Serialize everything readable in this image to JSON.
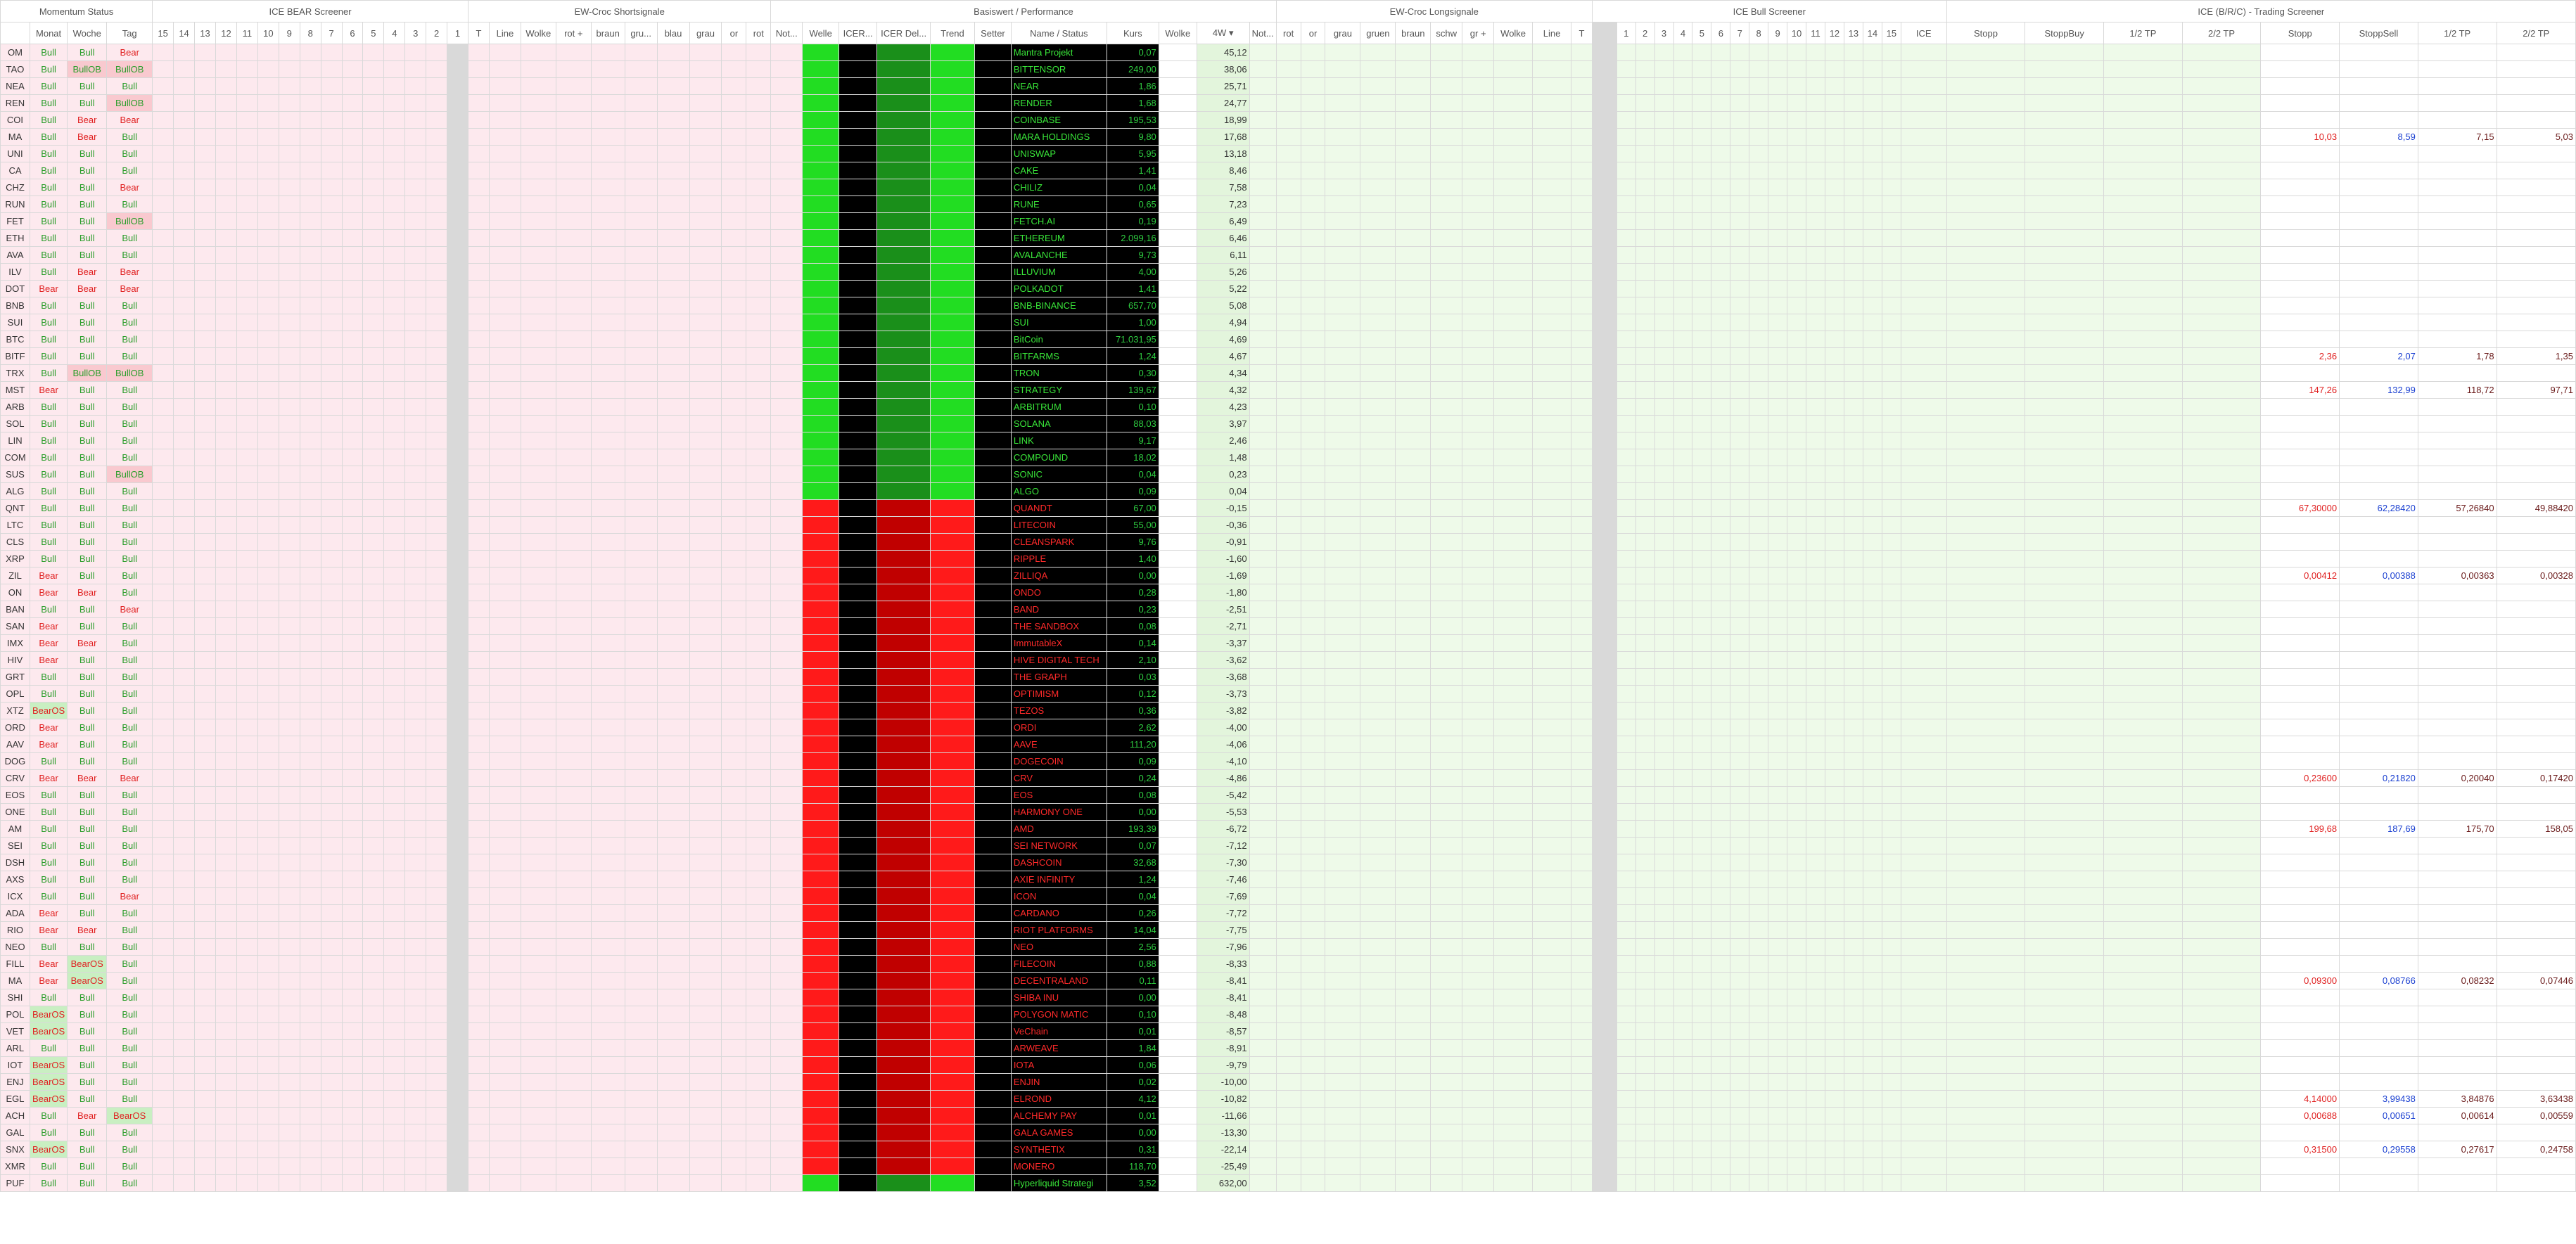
{
  "groups": [
    "Momentum Status",
    "ICE BEAR Screener",
    "EW-Croc Shortsignale",
    "Basiswert / Performance",
    "EW-Croc Longsignale",
    "ICE Bull Screener",
    "ICE (B/R/C) - Trading Screener"
  ],
  "columns": [
    null,
    "Monat",
    "Woche",
    "Tag",
    "15",
    "14",
    "13",
    "12",
    "11",
    "10",
    "9",
    "8",
    "7",
    "6",
    "5",
    "4",
    "3",
    "2",
    "1",
    "T",
    "Line",
    "Wolke",
    "rot +",
    "braun",
    "gru...",
    "blau",
    "grau",
    "or",
    "rot",
    "Not...",
    "Welle",
    "ICER...",
    "ICER Del...",
    "Trend",
    "Setter",
    "Name / Status",
    "Kurs",
    "Wolke",
    "4W ▾",
    "Not...",
    "rot",
    "or",
    "grau",
    "gruen",
    "braun",
    "schw",
    "gr +",
    "Wolke",
    "Line",
    "T",
    null,
    "1",
    "2",
    "3",
    "4",
    "5",
    "6",
    "7",
    "8",
    "9",
    "10",
    "11",
    "12",
    "13",
    "14",
    "15",
    "ICE",
    "Stopp",
    "StoppBuy",
    "1/2 TP",
    "2/2 TP",
    "Stopp",
    "StoppSell",
    "1/2 TP",
    "2/2 TP"
  ],
  "rows": [
    {
      "t": "OM",
      "m": "Bull",
      "w": "Bull",
      "d": "Bear",
      "n": "Mantra Projekt",
      "k": "0,07",
      "p": "45,12"
    },
    {
      "t": "TAO",
      "m": "Bull",
      "w": "BullOB",
      "d": "BullOB",
      "n": "BITTENSOR",
      "k": "249,00",
      "p": "38,06"
    },
    {
      "t": "NEA",
      "m": "Bull",
      "w": "Bull",
      "d": "Bull",
      "n": "NEAR",
      "k": "1,86",
      "p": "25,71"
    },
    {
      "t": "REN",
      "m": "Bull",
      "w": "Bull",
      "d": "BullOB",
      "n": "RENDER",
      "k": "1,68",
      "p": "24,77"
    },
    {
      "t": "COI",
      "m": "Bull",
      "w": "Bear",
      "d": "Bear",
      "n": "COINBASE",
      "k": "195,53",
      "p": "18,99"
    },
    {
      "t": "MA",
      "m": "Bull",
      "w": "Bear",
      "d": "Bull",
      "n": "MARA HOLDINGS",
      "k": "9,80",
      "p": "17,68",
      "ts": [
        "10,03",
        "8,59",
        "7,15",
        "5,03"
      ]
    },
    {
      "t": "UNI",
      "m": "Bull",
      "w": "Bull",
      "d": "Bull",
      "n": "UNISWAP",
      "k": "5,95",
      "p": "13,18"
    },
    {
      "t": "CA",
      "m": "Bull",
      "w": "Bull",
      "d": "Bull",
      "n": "CAKE",
      "k": "1,41",
      "p": "8,46"
    },
    {
      "t": "CHZ",
      "m": "Bull",
      "w": "Bull",
      "d": "Bear",
      "n": "CHILIZ",
      "k": "0,04",
      "p": "7,58"
    },
    {
      "t": "RUN",
      "m": "Bull",
      "w": "Bull",
      "d": "Bull",
      "n": "RUNE",
      "k": "0,65",
      "p": "7,23"
    },
    {
      "t": "FET",
      "m": "Bull",
      "w": "Bull",
      "d": "BullOB",
      "n": "FETCH.AI",
      "k": "0,19",
      "p": "6,49"
    },
    {
      "t": "ETH",
      "m": "Bull",
      "w": "Bull",
      "d": "Bull",
      "n": "ETHEREUM",
      "k": "2.099,16",
      "p": "6,46"
    },
    {
      "t": "AVA",
      "m": "Bull",
      "w": "Bull",
      "d": "Bull",
      "n": "AVALANCHE",
      "k": "9,73",
      "p": "6,11"
    },
    {
      "t": "ILV",
      "m": "Bull",
      "w": "Bear",
      "d": "Bear",
      "n": "ILLUVIUM",
      "k": "4,00",
      "p": "5,26"
    },
    {
      "t": "DOT",
      "m": "Bear",
      "w": "Bear",
      "d": "Bear",
      "n": "POLKADOT",
      "k": "1,41",
      "p": "5,22"
    },
    {
      "t": "BNB",
      "m": "Bull",
      "w": "Bull",
      "d": "Bull",
      "n": "BNB-BINANCE",
      "k": "657,70",
      "p": "5,08"
    },
    {
      "t": "SUI",
      "m": "Bull",
      "w": "Bull",
      "d": "Bull",
      "n": "SUI",
      "k": "1,00",
      "p": "4,94"
    },
    {
      "t": "BTC",
      "m": "Bull",
      "w": "Bull",
      "d": "Bull",
      "n": "BitCoin",
      "k": "71.031,95",
      "p": "4,69"
    },
    {
      "t": "BITF",
      "m": "Bull",
      "w": "Bull",
      "d": "Bull",
      "n": "BITFARMS",
      "k": "1,24",
      "p": "4,67",
      "ts": [
        "2,36",
        "2,07",
        "1,78",
        "1,35"
      ]
    },
    {
      "t": "TRX",
      "m": "Bull",
      "w": "BullOB",
      "d": "BullOB",
      "n": "TRON",
      "k": "0,30",
      "p": "4,34"
    },
    {
      "t": "MST",
      "m": "Bear",
      "w": "Bull",
      "d": "Bull",
      "n": "STRATEGY",
      "k": "139,67",
      "p": "4,32",
      "ts": [
        "147,26",
        "132,99",
        "118,72",
        "97,71"
      ]
    },
    {
      "t": "ARB",
      "m": "Bull",
      "w": "Bull",
      "d": "Bull",
      "n": "ARBITRUM",
      "k": "0,10",
      "p": "4,23"
    },
    {
      "t": "SOL",
      "m": "Bull",
      "w": "Bull",
      "d": "Bull",
      "n": "SOLANA",
      "k": "88,03",
      "p": "3,97"
    },
    {
      "t": "LIN",
      "m": "Bull",
      "w": "Bull",
      "d": "Bull",
      "n": "LINK",
      "k": "9,17",
      "p": "2,46"
    },
    {
      "t": "COM",
      "m": "Bull",
      "w": "Bull",
      "d": "Bull",
      "n": "COMPOUND",
      "k": "18,02",
      "p": "1,48"
    },
    {
      "t": "SUS",
      "m": "Bull",
      "w": "Bull",
      "d": "BullOB",
      "n": "SONIC",
      "k": "0,04",
      "p": "0,23"
    },
    {
      "t": "ALG",
      "m": "Bull",
      "w": "Bull",
      "d": "Bull",
      "n": "ALGO",
      "k": "0,09",
      "p": "0,04"
    },
    {
      "t": "QNT",
      "m": "Bull",
      "w": "Bull",
      "d": "Bull",
      "n": "QUANDT",
      "k": "67,00",
      "p": "-0,15",
      "ts": [
        "67,30000",
        "62,28420",
        "57,26840",
        "49,88420"
      ]
    },
    {
      "t": "LTC",
      "m": "Bull",
      "w": "Bull",
      "d": "Bull",
      "n": "LITECOIN",
      "k": "55,00",
      "p": "-0,36"
    },
    {
      "t": "CLS",
      "m": "Bull",
      "w": "Bull",
      "d": "Bull",
      "n": "CLEANSPARK",
      "k": "9,76",
      "p": "-0,91"
    },
    {
      "t": "XRP",
      "m": "Bull",
      "w": "Bull",
      "d": "Bull",
      "n": "RIPPLE",
      "k": "1,40",
      "p": "-1,60"
    },
    {
      "t": "ZIL",
      "m": "Bear",
      "w": "Bull",
      "d": "Bull",
      "n": "ZILLIQA",
      "k": "0,00",
      "p": "-1,69",
      "ts": [
        "0,00412",
        "0,00388",
        "0,00363",
        "0,00328"
      ]
    },
    {
      "t": "ON",
      "m": "Bear",
      "w": "Bear",
      "d": "Bull",
      "n": "ONDO",
      "k": "0,28",
      "p": "-1,80"
    },
    {
      "t": "BAN",
      "m": "Bull",
      "w": "Bull",
      "d": "Bear",
      "n": "BAND",
      "k": "0,23",
      "p": "-2,51"
    },
    {
      "t": "SAN",
      "m": "Bear",
      "w": "Bull",
      "d": "Bull",
      "n": "THE SANDBOX",
      "k": "0,08",
      "p": "-2,71"
    },
    {
      "t": "IMX",
      "m": "Bear",
      "w": "Bear",
      "d": "Bull",
      "n": "ImmutableX",
      "k": "0,14",
      "p": "-3,37"
    },
    {
      "t": "HIV",
      "m": "Bear",
      "w": "Bull",
      "d": "Bull",
      "n": "HIVE DIGITAL TECH",
      "k": "2,10",
      "p": "-3,62"
    },
    {
      "t": "GRT",
      "m": "Bull",
      "w": "Bull",
      "d": "Bull",
      "n": "THE GRAPH",
      "k": "0,03",
      "p": "-3,68"
    },
    {
      "t": "OPL",
      "m": "Bull",
      "w": "Bull",
      "d": "Bull",
      "n": "OPTIMISM",
      "k": "0,12",
      "p": "-3,73"
    },
    {
      "t": "XTZ",
      "m": "BearOS",
      "w": "Bull",
      "d": "Bull",
      "n": "TEZOS",
      "k": "0,36",
      "p": "-3,82"
    },
    {
      "t": "ORD",
      "m": "Bear",
      "w": "Bull",
      "d": "Bull",
      "n": "ORDI",
      "k": "2,62",
      "p": "-4,00"
    },
    {
      "t": "AAV",
      "m": "Bear",
      "w": "Bull",
      "d": "Bull",
      "n": "AAVE",
      "k": "111,20",
      "p": "-4,06"
    },
    {
      "t": "DOG",
      "m": "Bull",
      "w": "Bull",
      "d": "Bull",
      "n": "DOGECOIN",
      "k": "0,09",
      "p": "-4,10"
    },
    {
      "t": "CRV",
      "m": "Bear",
      "w": "Bear",
      "d": "Bear",
      "n": "CRV",
      "k": "0,24",
      "p": "-4,86",
      "ts": [
        "0,23600",
        "0,21820",
        "0,20040",
        "0,17420"
      ]
    },
    {
      "t": "EOS",
      "m": "Bull",
      "w": "Bull",
      "d": "Bull",
      "n": "EOS",
      "k": "0,08",
      "p": "-5,42"
    },
    {
      "t": "ONE",
      "m": "Bull",
      "w": "Bull",
      "d": "Bull",
      "n": "HARMONY ONE",
      "k": "0,00",
      "p": "-5,53"
    },
    {
      "t": "AM",
      "m": "Bull",
      "w": "Bull",
      "d": "Bull",
      "n": "AMD",
      "k": "193,39",
      "p": "-6,72",
      "ts": [
        "199,68",
        "187,69",
        "175,70",
        "158,05"
      ]
    },
    {
      "t": "SEI",
      "m": "Bull",
      "w": "Bull",
      "d": "Bull",
      "n": "SEI NETWORK",
      "k": "0,07",
      "p": "-7,12"
    },
    {
      "t": "DSH",
      "m": "Bull",
      "w": "Bull",
      "d": "Bull",
      "n": "DASHCOIN",
      "k": "32,68",
      "p": "-7,30"
    },
    {
      "t": "AXS",
      "m": "Bull",
      "w": "Bull",
      "d": "Bull",
      "n": "AXIE INFINITY",
      "k": "1,24",
      "p": "-7,46"
    },
    {
      "t": "ICX",
      "m": "Bull",
      "w": "Bull",
      "d": "Bear",
      "n": "ICON",
      "k": "0,04",
      "p": "-7,69"
    },
    {
      "t": "ADA",
      "m": "Bear",
      "w": "Bull",
      "d": "Bull",
      "n": "CARDANO",
      "k": "0,26",
      "p": "-7,72"
    },
    {
      "t": "RIO",
      "m": "Bear",
      "w": "Bear",
      "d": "Bull",
      "n": "RIOT PLATFORMS",
      "k": "14,04",
      "p": "-7,75"
    },
    {
      "t": "NEO",
      "m": "Bull",
      "w": "Bull",
      "d": "Bull",
      "n": "NEO",
      "k": "2,56",
      "p": "-7,96"
    },
    {
      "t": "FILL",
      "m": "Bear",
      "w": "BearOS",
      "d": "Bull",
      "n": "FILECOIN",
      "k": "0,88",
      "p": "-8,33"
    },
    {
      "t": "MA",
      "m": "Bear",
      "w": "BearOS",
      "d": "Bull",
      "n": "DECENTRALAND",
      "k": "0,11",
      "p": "-8,41",
      "ts": [
        "0,09300",
        "0,08766",
        "0,08232",
        "0,07446"
      ]
    },
    {
      "t": "SHI",
      "m": "Bull",
      "w": "Bull",
      "d": "Bull",
      "n": "SHIBA INU",
      "k": "0,00",
      "p": "-8,41"
    },
    {
      "t": "POL",
      "m": "BearOS",
      "w": "Bull",
      "d": "Bull",
      "n": "POLYGON MATIC",
      "k": "0,10",
      "p": "-8,48"
    },
    {
      "t": "VET",
      "m": "BearOS",
      "w": "Bull",
      "d": "Bull",
      "n": "VeChain",
      "k": "0,01",
      "p": "-8,57"
    },
    {
      "t": "ARL",
      "m": "Bull",
      "w": "Bull",
      "d": "Bull",
      "n": "ARWEAVE",
      "k": "1,84",
      "p": "-8,91"
    },
    {
      "t": "IOT",
      "m": "BearOS",
      "w": "Bull",
      "d": "Bull",
      "n": "IOTA",
      "k": "0,06",
      "p": "-9,79"
    },
    {
      "t": "ENJ",
      "m": "BearOS",
      "w": "Bull",
      "d": "Bull",
      "n": "ENJIN",
      "k": "0,02",
      "p": "-10,00"
    },
    {
      "t": "EGL",
      "m": "BearOS",
      "w": "Bull",
      "d": "Bull",
      "n": "ELROND",
      "k": "4,12",
      "p": "-10,82",
      "ts": [
        "4,14000",
        "3,99438",
        "3,84876",
        "3,63438"
      ]
    },
    {
      "t": "ACH",
      "m": "Bull",
      "w": "Bear",
      "d": "BearOS",
      "n": "ALCHEMY PAY",
      "k": "0,01",
      "p": "-11,66",
      "ts": [
        "0,00688",
        "0,00651",
        "0,00614",
        "0,00559"
      ]
    },
    {
      "t": "GAL",
      "m": "Bull",
      "w": "Bull",
      "d": "Bull",
      "n": "GALA GAMES",
      "k": "0,00",
      "p": "-13,30"
    },
    {
      "t": "SNX",
      "m": "BearOS",
      "w": "Bull",
      "d": "Bull",
      "n": "SYNTHETIX",
      "k": "0,31",
      "p": "-22,14",
      "ts": [
        "0,31500",
        "0,29558",
        "0,27617",
        "0,24758"
      ]
    },
    {
      "t": "XMR",
      "m": "Bull",
      "w": "Bull",
      "d": "Bull",
      "n": "MONERO",
      "k": "118,70",
      "p": "-25,49"
    },
    {
      "t": "PUF",
      "m": "Bull",
      "w": "Bull",
      "d": "Bull",
      "n": "Hyperliquid Strategi",
      "k": "3,52",
      "p": "632,00"
    }
  ]
}
